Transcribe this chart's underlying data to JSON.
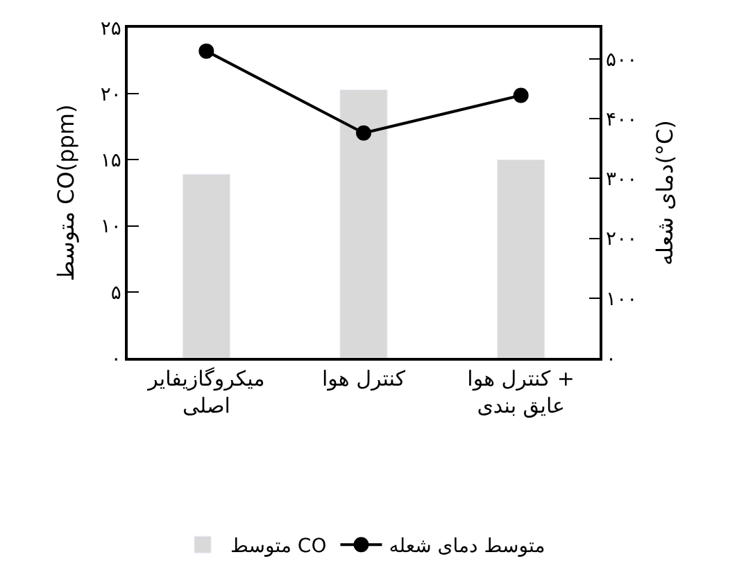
{
  "chart_data": {
    "type": "bar",
    "categories": [
      "میکروگازیفایر اصلی",
      "کنترل هوا",
      "کنترل هوا + عایق بندی"
    ],
    "series": [
      {
        "name": "متوسط CO",
        "color": "#d9d9d9",
        "values": [
          13.9,
          20.3,
          15.0
        ]
      },
      {
        "name": "متوسط دمای شعله",
        "type": "line",
        "axis": "y2",
        "color": "#000000",
        "marker": "circle",
        "line_style": "solid",
        "values": [
          513,
          376,
          439
        ]
      }
    ],
    "ylabel": "متوسط CO(ppm)",
    "y2label": "دمای شعله(°C)",
    "ylim": [
      0,
      25
    ],
    "yticks": [
      {
        "value": 0,
        "label": "۰"
      },
      {
        "value": 5,
        "label": "۵"
      },
      {
        "value": 10,
        "label": "۱۰"
      },
      {
        "value": 15,
        "label": "۱۵"
      },
      {
        "value": 20,
        "label": "۲۰"
      },
      {
        "value": 25,
        "label": "۲۵"
      }
    ],
    "y2lim": [
      0,
      552
    ],
    "y2ticks": [
      {
        "value": 0,
        "label": "۰"
      },
      {
        "value": 100,
        "label": "۱۰۰"
      },
      {
        "value": 200,
        "label": "۲۰۰"
      },
      {
        "value": 300,
        "label": "۳۰۰"
      },
      {
        "value": 400,
        "label": "۴۰۰"
      },
      {
        "value": 500,
        "label": "۵۰۰"
      }
    ],
    "legend": "bottom"
  }
}
